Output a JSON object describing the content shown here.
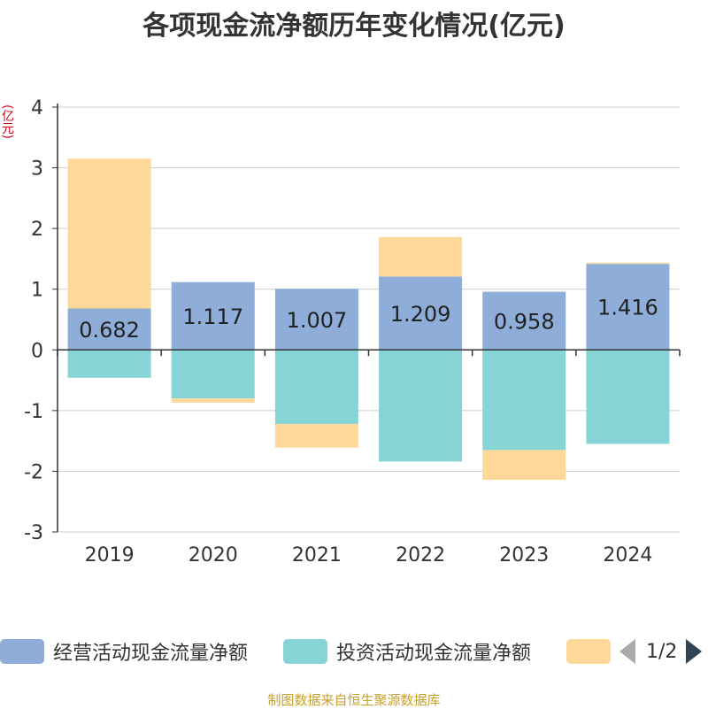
{
  "title": "各项现金流净额历年变化情况(亿元)",
  "unit_label": "(亿元)",
  "source": "制图数据来自恒生聚源数据库",
  "pager": "1/2",
  "colors": {
    "operating": "#8eadd9",
    "investing": "#86d4d6",
    "financing": "#fdd899"
  },
  "legend": [
    {
      "label": "经营活动现金流量净额",
      "color_key": "operating"
    },
    {
      "label": "投资活动现金流量净额",
      "color_key": "investing"
    },
    {
      "label": "",
      "color_key": "financing"
    }
  ],
  "chart_data": {
    "type": "bar",
    "stacked": true,
    "categories": [
      "2019",
      "2020",
      "2021",
      "2022",
      "2023",
      "2024"
    ],
    "ylim": [
      -3,
      4
    ],
    "yticks": [
      -3,
      -2,
      -1,
      0,
      1,
      2,
      3,
      4
    ],
    "grid": true,
    "legend_position": "bottom",
    "series": [
      {
        "name": "经营活动现金流量净额",
        "color_key": "operating",
        "values": [
          0.682,
          1.117,
          1.007,
          1.209,
          0.958,
          1.416
        ],
        "labels": [
          "0.682",
          "1.117",
          "1.007",
          "1.209",
          "0.958",
          "1.416"
        ]
      },
      {
        "name": "投资活动现金流量净额",
        "color_key": "investing",
        "values": [
          -0.46,
          -0.8,
          -1.22,
          -1.84,
          -1.65,
          -1.55
        ]
      },
      {
        "name": "",
        "color_key": "financing",
        "values": [
          2.47,
          -0.07,
          -0.39,
          0.65,
          -0.49,
          0.02
        ]
      }
    ]
  }
}
